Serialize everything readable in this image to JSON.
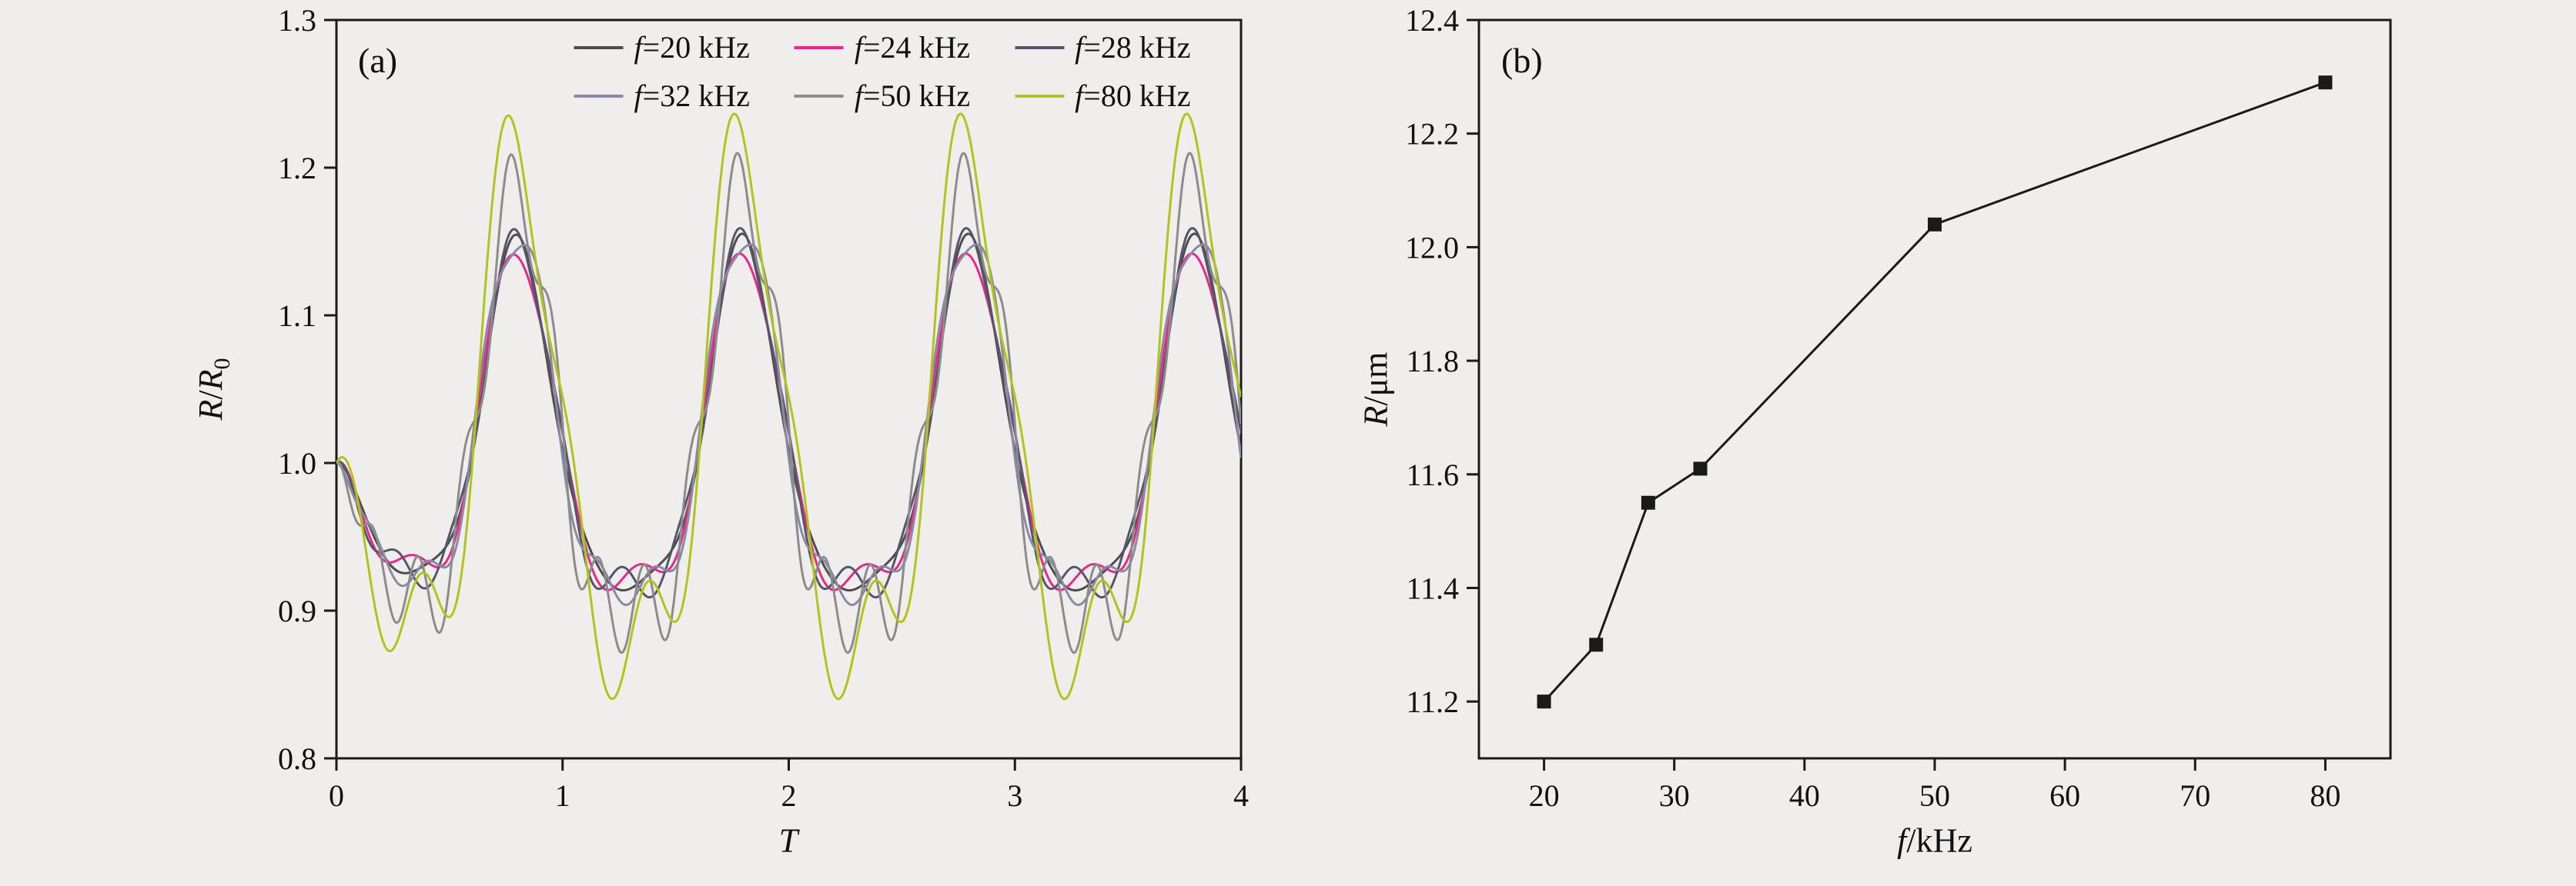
{
  "colors": {
    "background": "#efeeec",
    "axis": "#1a1a1a",
    "text": "#111111"
  },
  "panel_tags": {
    "a": "(a)",
    "b": "(b)"
  },
  "chart_data": [
    {
      "panel": "(a)",
      "type": "line",
      "xlabel": "T",
      "ylabel": "R/R0",
      "xlabel_parts": [
        {
          "text": "T",
          "italic": true
        }
      ],
      "ylabel_parts": [
        {
          "text": "R",
          "italic": true
        },
        {
          "text": "/"
        },
        {
          "text": "R",
          "italic": true
        },
        {
          "text": "0",
          "sub": true
        }
      ],
      "xlim": [
        0,
        4
      ],
      "ylim": [
        0.8,
        1.3
      ],
      "xticks": [
        "0",
        "1",
        "2",
        "3",
        "4"
      ],
      "yticks": [
        "0.8",
        "0.9",
        "1.0",
        "1.1",
        "1.2",
        "1.3"
      ],
      "legend_position": "top-center",
      "series": [
        {
          "name": "f=20 kHz",
          "label_prefix": "f",
          "label_rest": "=20 kHz",
          "color": "#4d4d4d",
          "start_value": 1.0,
          "peak_approx": 1.15,
          "trough_approx": 0.92,
          "period_T": 1.0,
          "waveform_model": {
            "C": 0.003,
            "A1": 0.113,
            "A2": 0.032,
            "A3": 0.008,
            "k": 3,
            "phi": 0.5,
            "t0": 0.8
          }
        },
        {
          "name": "f=24 kHz",
          "label_prefix": "f",
          "label_rest": "=24 kHz",
          "color": "#e7298a",
          "start_value": 1.0,
          "peak_approx": 1.14,
          "trough_approx": 0.92,
          "period_T": 1.0,
          "waveform_model": {
            "C": 0.003,
            "A1": 0.111,
            "A2": 0.031,
            "A3": 0.009,
            "k": 3,
            "phi": 2.1,
            "t0": 0.8
          }
        },
        {
          "name": "f=28 kHz",
          "label_prefix": "f",
          "label_rest": "=28 kHz",
          "color": "#55566d",
          "start_value": 1.0,
          "peak_approx": 1.15,
          "trough_approx": 0.92,
          "period_T": 1.0,
          "waveform_model": {
            "C": 0.003,
            "A1": 0.116,
            "A2": 0.033,
            "A3": 0.01,
            "k": 4,
            "phi": 1.0,
            "t0": 0.8
          }
        },
        {
          "name": "f=32 kHz",
          "label_prefix": "f",
          "label_rest": "=32 kHz",
          "color": "#8a8aa5",
          "start_value": 1.0,
          "peak_approx": 1.16,
          "trough_approx": 0.91,
          "period_T": 1.0,
          "waveform_model": {
            "C": 0.003,
            "A1": 0.12,
            "A2": 0.034,
            "A3": 0.013,
            "k": 4,
            "phi": 3.6,
            "t0": 0.8
          }
        },
        {
          "name": "f=50 kHz",
          "label_prefix": "f",
          "label_rest": "=50 kHz",
          "color": "#8c8c8c",
          "start_value": 1.0,
          "peak_approx": 1.2,
          "trough_approx": 0.87,
          "period_T": 1.0,
          "waveform_model": {
            "C": 0.004,
            "A1": 0.142,
            "A2": 0.04,
            "A3": 0.03,
            "k": 5,
            "phi": 1.2,
            "t0": 0.8
          }
        },
        {
          "name": "f=80 kHz",
          "label_prefix": "f",
          "label_rest": "=80 kHz",
          "color": "#b2c41c",
          "start_value": 1.0,
          "peak_approx": 1.23,
          "trough_approx": 0.82,
          "period_T": 1.0,
          "waveform_model": {
            "C": 0.005,
            "A1": 0.17,
            "A2": 0.045,
            "A3": 0.04,
            "k": 3,
            "phi": 1.5708,
            "t0": 0.8
          }
        }
      ]
    },
    {
      "panel": "(b)",
      "type": "line",
      "marker": "square",
      "color": "#1a1a1a",
      "xlabel": "f/kHz",
      "ylabel": "R/μm",
      "xlabel_parts": [
        {
          "text": "f",
          "italic": true
        },
        {
          "text": "/kHz"
        }
      ],
      "ylabel_parts": [
        {
          "text": "R",
          "italic": true
        },
        {
          "text": "/μm"
        }
      ],
      "xlim": [
        15,
        85
      ],
      "ylim": [
        11.1,
        12.4
      ],
      "xticks": [
        "20",
        "30",
        "40",
        "50",
        "60",
        "70",
        "80"
      ],
      "yticks": [
        "11.2",
        "11.4",
        "11.6",
        "11.8",
        "12.0",
        "12.2",
        "12.4"
      ],
      "points": [
        {
          "x": 20,
          "y": 11.2
        },
        {
          "x": 24,
          "y": 11.3
        },
        {
          "x": 28,
          "y": 11.55
        },
        {
          "x": 32,
          "y": 11.61
        },
        {
          "x": 50,
          "y": 12.04
        },
        {
          "x": 80,
          "y": 12.29
        }
      ]
    }
  ]
}
